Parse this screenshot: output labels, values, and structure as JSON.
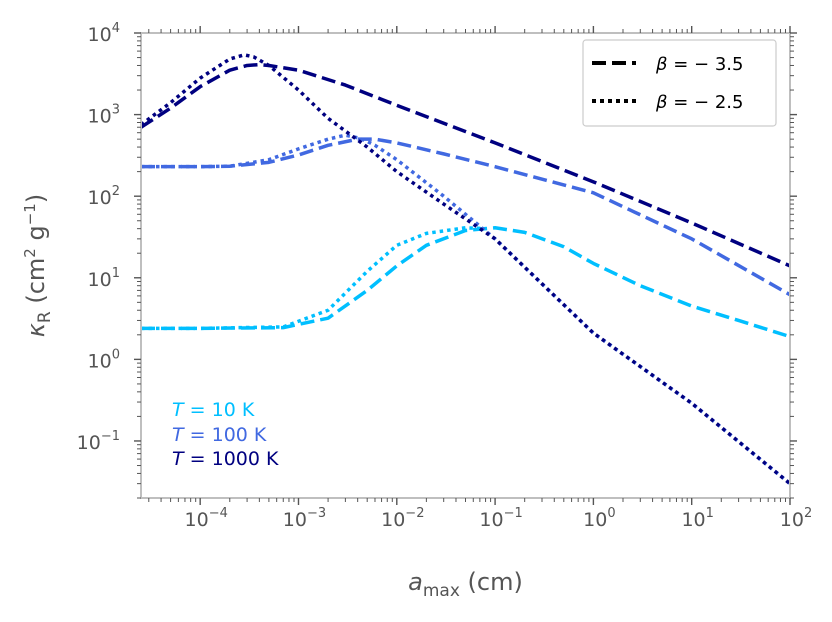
{
  "chart_data": {
    "type": "line",
    "xscale": "log",
    "yscale": "log",
    "xlim": [
      2.5e-05,
      100
    ],
    "ylim": [
      0.02,
      10000
    ],
    "xlabel_base": "a",
    "xlabel_sub": "max",
    "xlabel_unit": "(cm)",
    "ylabel_base": "κ",
    "ylabel_sub": "R",
    "ylabel_unit_open": "(cm",
    "ylabel_unit_sup1": "2",
    "ylabel_unit_mid": " g",
    "ylabel_unit_sup2": "−1",
    "ylabel_unit_close": ")",
    "xticks": [
      {
        "value": 0.0001,
        "base": "10",
        "exp": "−4"
      },
      {
        "value": 0.001,
        "base": "10",
        "exp": "−3"
      },
      {
        "value": 0.01,
        "base": "10",
        "exp": "−2"
      },
      {
        "value": 0.1,
        "base": "10",
        "exp": "−1"
      },
      {
        "value": 1,
        "base": "10",
        "exp": "0"
      },
      {
        "value": 10,
        "base": "10",
        "exp": "1"
      },
      {
        "value": 100,
        "base": "10",
        "exp": "2"
      }
    ],
    "yticks": [
      {
        "value": 0.1,
        "base": "10",
        "exp": "−1"
      },
      {
        "value": 1,
        "base": "10",
        "exp": "0"
      },
      {
        "value": 10,
        "base": "10",
        "exp": "1"
      },
      {
        "value": 100,
        "base": "10",
        "exp": "2"
      },
      {
        "value": 1000,
        "base": "10",
        "exp": "3"
      },
      {
        "value": 10000,
        "base": "10",
        "exp": "4"
      }
    ],
    "legend": {
      "position": "top-right",
      "entries": [
        {
          "style": "dashed",
          "label_symbol": "β",
          "label_rest": " = − 3.5"
        },
        {
          "style": "dotted",
          "label_symbol": "β",
          "label_rest": " = − 2.5"
        }
      ]
    },
    "annotations": [
      {
        "symbol": "T",
        "text": " = 10 K",
        "color": "#00bfff"
      },
      {
        "symbol": "T",
        "text": " = 100 K",
        "color": "#4169e1"
      },
      {
        "symbol": "T",
        "text": " = 1000 K",
        "color": "#000080"
      }
    ],
    "series": [
      {
        "name": "T=10 K, β=−3.5",
        "color": "#00bfff",
        "style": "dashed",
        "points": [
          [
            2.5e-05,
            2.4
          ],
          [
            0.0001,
            2.4
          ],
          [
            0.0007,
            2.45
          ],
          [
            0.002,
            3.2
          ],
          [
            0.005,
            7
          ],
          [
            0.01,
            14
          ],
          [
            0.02,
            25
          ],
          [
            0.05,
            38
          ],
          [
            0.1,
            41
          ],
          [
            0.2,
            36
          ],
          [
            0.5,
            24
          ],
          [
            1,
            15
          ],
          [
            3,
            8
          ],
          [
            10,
            4.5
          ],
          [
            30,
            3
          ],
          [
            100,
            1.9
          ]
        ]
      },
      {
        "name": "T=10 K, β=−2.5",
        "color": "#00bfff",
        "style": "dotted",
        "points": [
          [
            2.5e-05,
            2.4
          ],
          [
            0.0001,
            2.4
          ],
          [
            0.0007,
            2.5
          ],
          [
            0.002,
            4
          ],
          [
            0.005,
            12
          ],
          [
            0.01,
            25
          ],
          [
            0.02,
            35
          ],
          [
            0.05,
            41
          ],
          [
            0.08,
            40
          ]
        ]
      },
      {
        "name": "T=100 K, β=−3.5",
        "color": "#4169e1",
        "style": "dashed",
        "points": [
          [
            2.5e-05,
            230
          ],
          [
            0.0001,
            230
          ],
          [
            0.0002,
            233
          ],
          [
            0.0005,
            260
          ],
          [
            0.001,
            320
          ],
          [
            0.002,
            420
          ],
          [
            0.004,
            500
          ],
          [
            0.006,
            500
          ],
          [
            0.01,
            450
          ],
          [
            0.03,
            330
          ],
          [
            0.1,
            230
          ],
          [
            1,
            110
          ],
          [
            10,
            30
          ],
          [
            100,
            6.2
          ]
        ]
      },
      {
        "name": "T=100 K, β=−2.5",
        "color": "#4169e1",
        "style": "dotted",
        "points": [
          [
            2.5e-05,
            230
          ],
          [
            0.0001,
            230
          ],
          [
            0.0002,
            233
          ],
          [
            0.0005,
            280
          ],
          [
            0.001,
            380
          ],
          [
            0.002,
            500
          ],
          [
            0.003,
            560
          ],
          [
            0.004,
            520
          ],
          [
            0.005,
            470
          ],
          [
            0.006,
            420
          ],
          [
            0.01,
            280
          ],
          [
            0.03,
            100
          ],
          [
            0.1,
            30
          ],
          [
            1,
            2.1
          ],
          [
            10,
            0.29
          ],
          [
            100,
            0.03
          ]
        ]
      },
      {
        "name": "T=1000 K, β=−3.5",
        "color": "#000080",
        "style": "dashed",
        "points": [
          [
            2.5e-05,
            700
          ],
          [
            5e-05,
            1200
          ],
          [
            0.0001,
            2200
          ],
          [
            0.0002,
            3500
          ],
          [
            0.0003,
            4000
          ],
          [
            0.0004,
            4100
          ],
          [
            0.0005,
            4000
          ],
          [
            0.001,
            3500
          ],
          [
            0.003,
            2300
          ],
          [
            0.01,
            1300
          ],
          [
            0.1,
            450
          ],
          [
            1,
            150
          ],
          [
            10,
            47
          ],
          [
            100,
            14
          ]
        ]
      },
      {
        "name": "T=1000 K, β=−2.5",
        "color": "#000080",
        "style": "dotted",
        "points": [
          [
            2.5e-05,
            750
          ],
          [
            5e-05,
            1400
          ],
          [
            0.0001,
            2800
          ],
          [
            0.0002,
            4800
          ],
          [
            0.00028,
            5400
          ],
          [
            0.00035,
            5100
          ],
          [
            0.0005,
            4000
          ],
          [
            0.001,
            2000
          ],
          [
            0.002,
            900
          ],
          [
            0.005,
            400
          ],
          [
            0.01,
            200
          ],
          [
            0.03,
            80
          ],
          [
            0.1,
            30
          ],
          [
            1,
            2.1
          ],
          [
            10,
            0.29
          ],
          [
            100,
            0.03
          ]
        ]
      }
    ]
  }
}
